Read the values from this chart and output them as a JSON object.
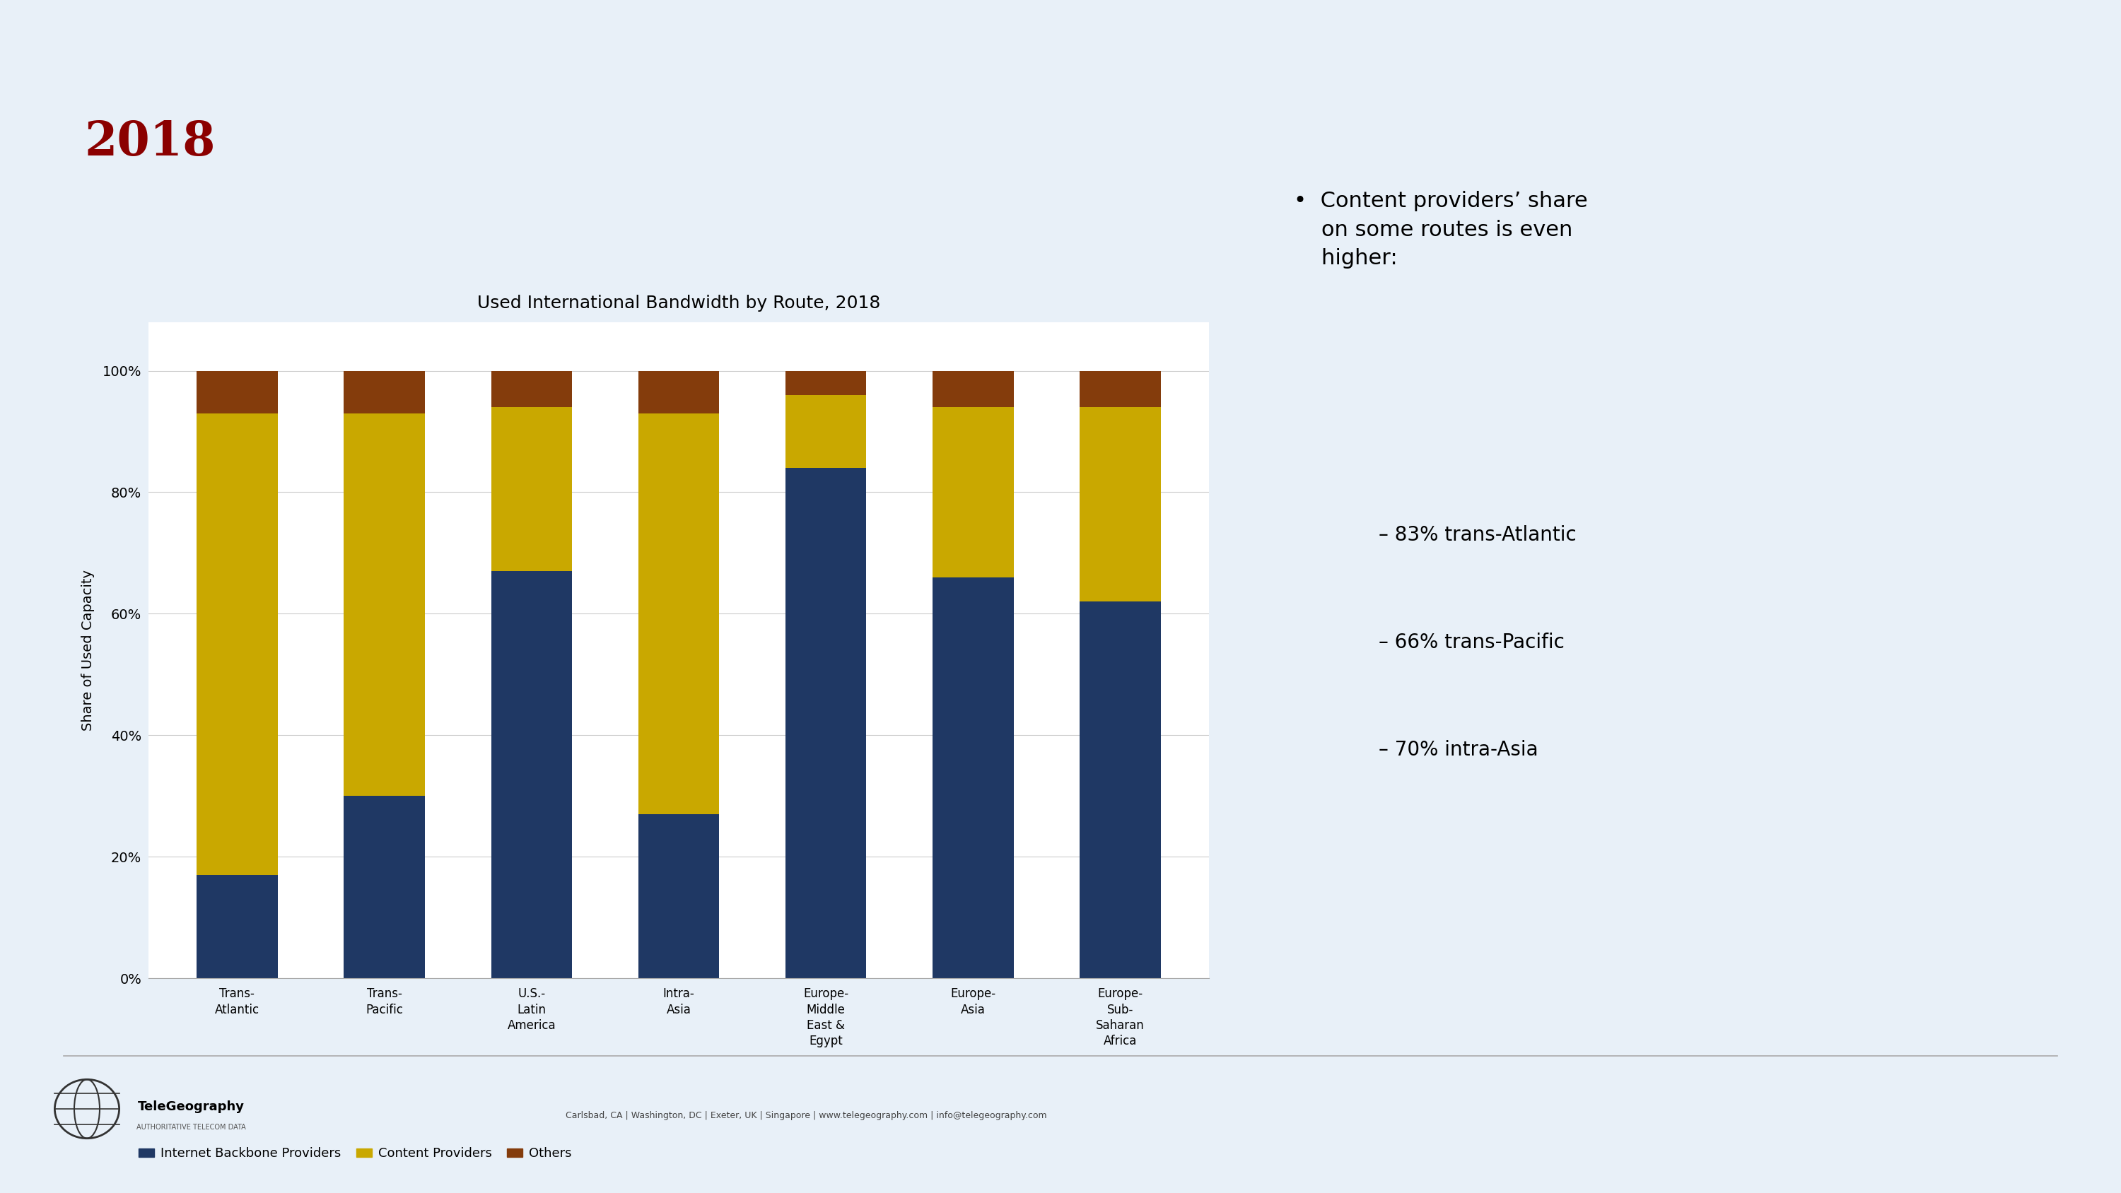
{
  "title": "Used International Bandwidth by Route, 2018",
  "year_label": "2018",
  "categories": [
    "Trans-\nAtlantic",
    "Trans-\nPacific",
    "U.S.-\nLatin\nAmerica",
    "Intra-\nAsia",
    "Europe-\nMiddle\nEast &\nEgypt",
    "Europe-\nAsia",
    "Europe-\nSub-\nSaharan\nAfrica"
  ],
  "internet_backbone": [
    17,
    30,
    67,
    27,
    84,
    66,
    62
  ],
  "content_providers": [
    76,
    63,
    27,
    66,
    12,
    28,
    32
  ],
  "others": [
    7,
    7,
    6,
    7,
    4,
    6,
    6
  ],
  "color_backbone": "#1f3864",
  "color_content": "#c9a800",
  "color_others": "#843c0c",
  "ylabel": "Share of Used Capacity",
  "yticks": [
    0,
    20,
    40,
    60,
    80,
    100
  ],
  "ytick_labels": [
    "0%",
    "20%",
    "40%",
    "60%",
    "80%",
    "100%"
  ],
  "legend_labels": [
    "Internet Backbone Providers",
    "Content Providers",
    "Others"
  ],
  "bullet_main": "Content providers’ share\non some routes is even\nhigher:",
  "sub_bullets": [
    "– 83% trans-Atlantic",
    "– 66% trans-Pacific",
    "– 70% intra-Asia"
  ],
  "background_color": "#e8f0f8",
  "chart_bg": "#ffffff",
  "footer_text": "Carlsbad, CA | Washington, DC | Exeter, UK | Singapore | www.telegeography.com | info@telegeography.com",
  "company_name": "TeleGeography",
  "company_sub": "AUTHORITATIVE TELECOM DATA",
  "year_color": "#8b0000",
  "title_fontsize": 18,
  "year_fontsize": 48,
  "bar_width": 0.55
}
